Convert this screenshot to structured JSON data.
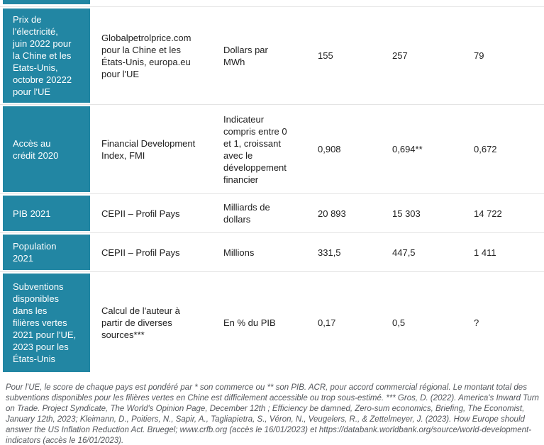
{
  "accent_color": "#2286a3",
  "table": {
    "rows": [
      {
        "header": "Prix de\nl'électricité,\njuin 2022 pour\nla Chine et les\nEtats-Unis,\noctobre 20222\npour l'UE",
        "source": "Globalpetrolprice.com\npour la Chine et les\nÉtats-Unis, europa.eu\npour l'UE",
        "unit": "Dollars par\nMWh",
        "values": [
          "155",
          "257",
          "79"
        ]
      },
      {
        "header": "Accès au\ncrédit 2020",
        "source": "Financial Development\nIndex, FMI",
        "unit": "Indicateur\ncompris entre 0\net 1, croissant\navec le\ndéveloppement\nfinancier",
        "values": [
          "0,908",
          "0,694**",
          "0,672"
        ]
      },
      {
        "header": "PIB 2021",
        "source": "CEPII – Profil Pays",
        "unit": "Milliards de\ndollars",
        "values": [
          "20 893",
          "15 303",
          "14 722"
        ]
      },
      {
        "header": "Population\n2021",
        "source": "CEPII – Profil Pays",
        "unit": "Millions",
        "values": [
          "331,5",
          "447,5",
          "1 411"
        ]
      },
      {
        "header": "Subventions\ndisponibles\ndans les\nfilières vertes\n2021 pour l'UE,\n2023 pour les\nÉtats-Unis",
        "source": "Calcul de l'auteur à\npartir de diverses\nsources***",
        "unit": "En % du PIB",
        "values": [
          "0,17",
          "0,5",
          "?"
        ]
      }
    ]
  },
  "footnote": "Pour l'UE, le score de chaque pays est pondéré par * son commerce ou ** son PIB. ACR, pour accord commercial régional. Le montant total des subventions disponibles pour les filières vertes en Chine est difficilement accessible ou trop sous-estimé. *** Gros, D. (2022). America's Inward Turn on Trade. Project Syndicate, The World's Opinion Page, December 12th ; Efficiency be damned, Zero-sum economics, Briefing, The Economist, January 12th, 2023; Kleimann, D., Poitiers, N., Sapir, A., Tagliapietra, S., Véron, N., Veugelers, R., & Zettelmeyer, J. (2023). How Europe should answer the US Inflation Reduction Act. Bruegel; www.crfb.org (accès le 16/01/2023) et https://databank.worldbank.org/source/world-development-indicators (accès le 16/01/2023)."
}
